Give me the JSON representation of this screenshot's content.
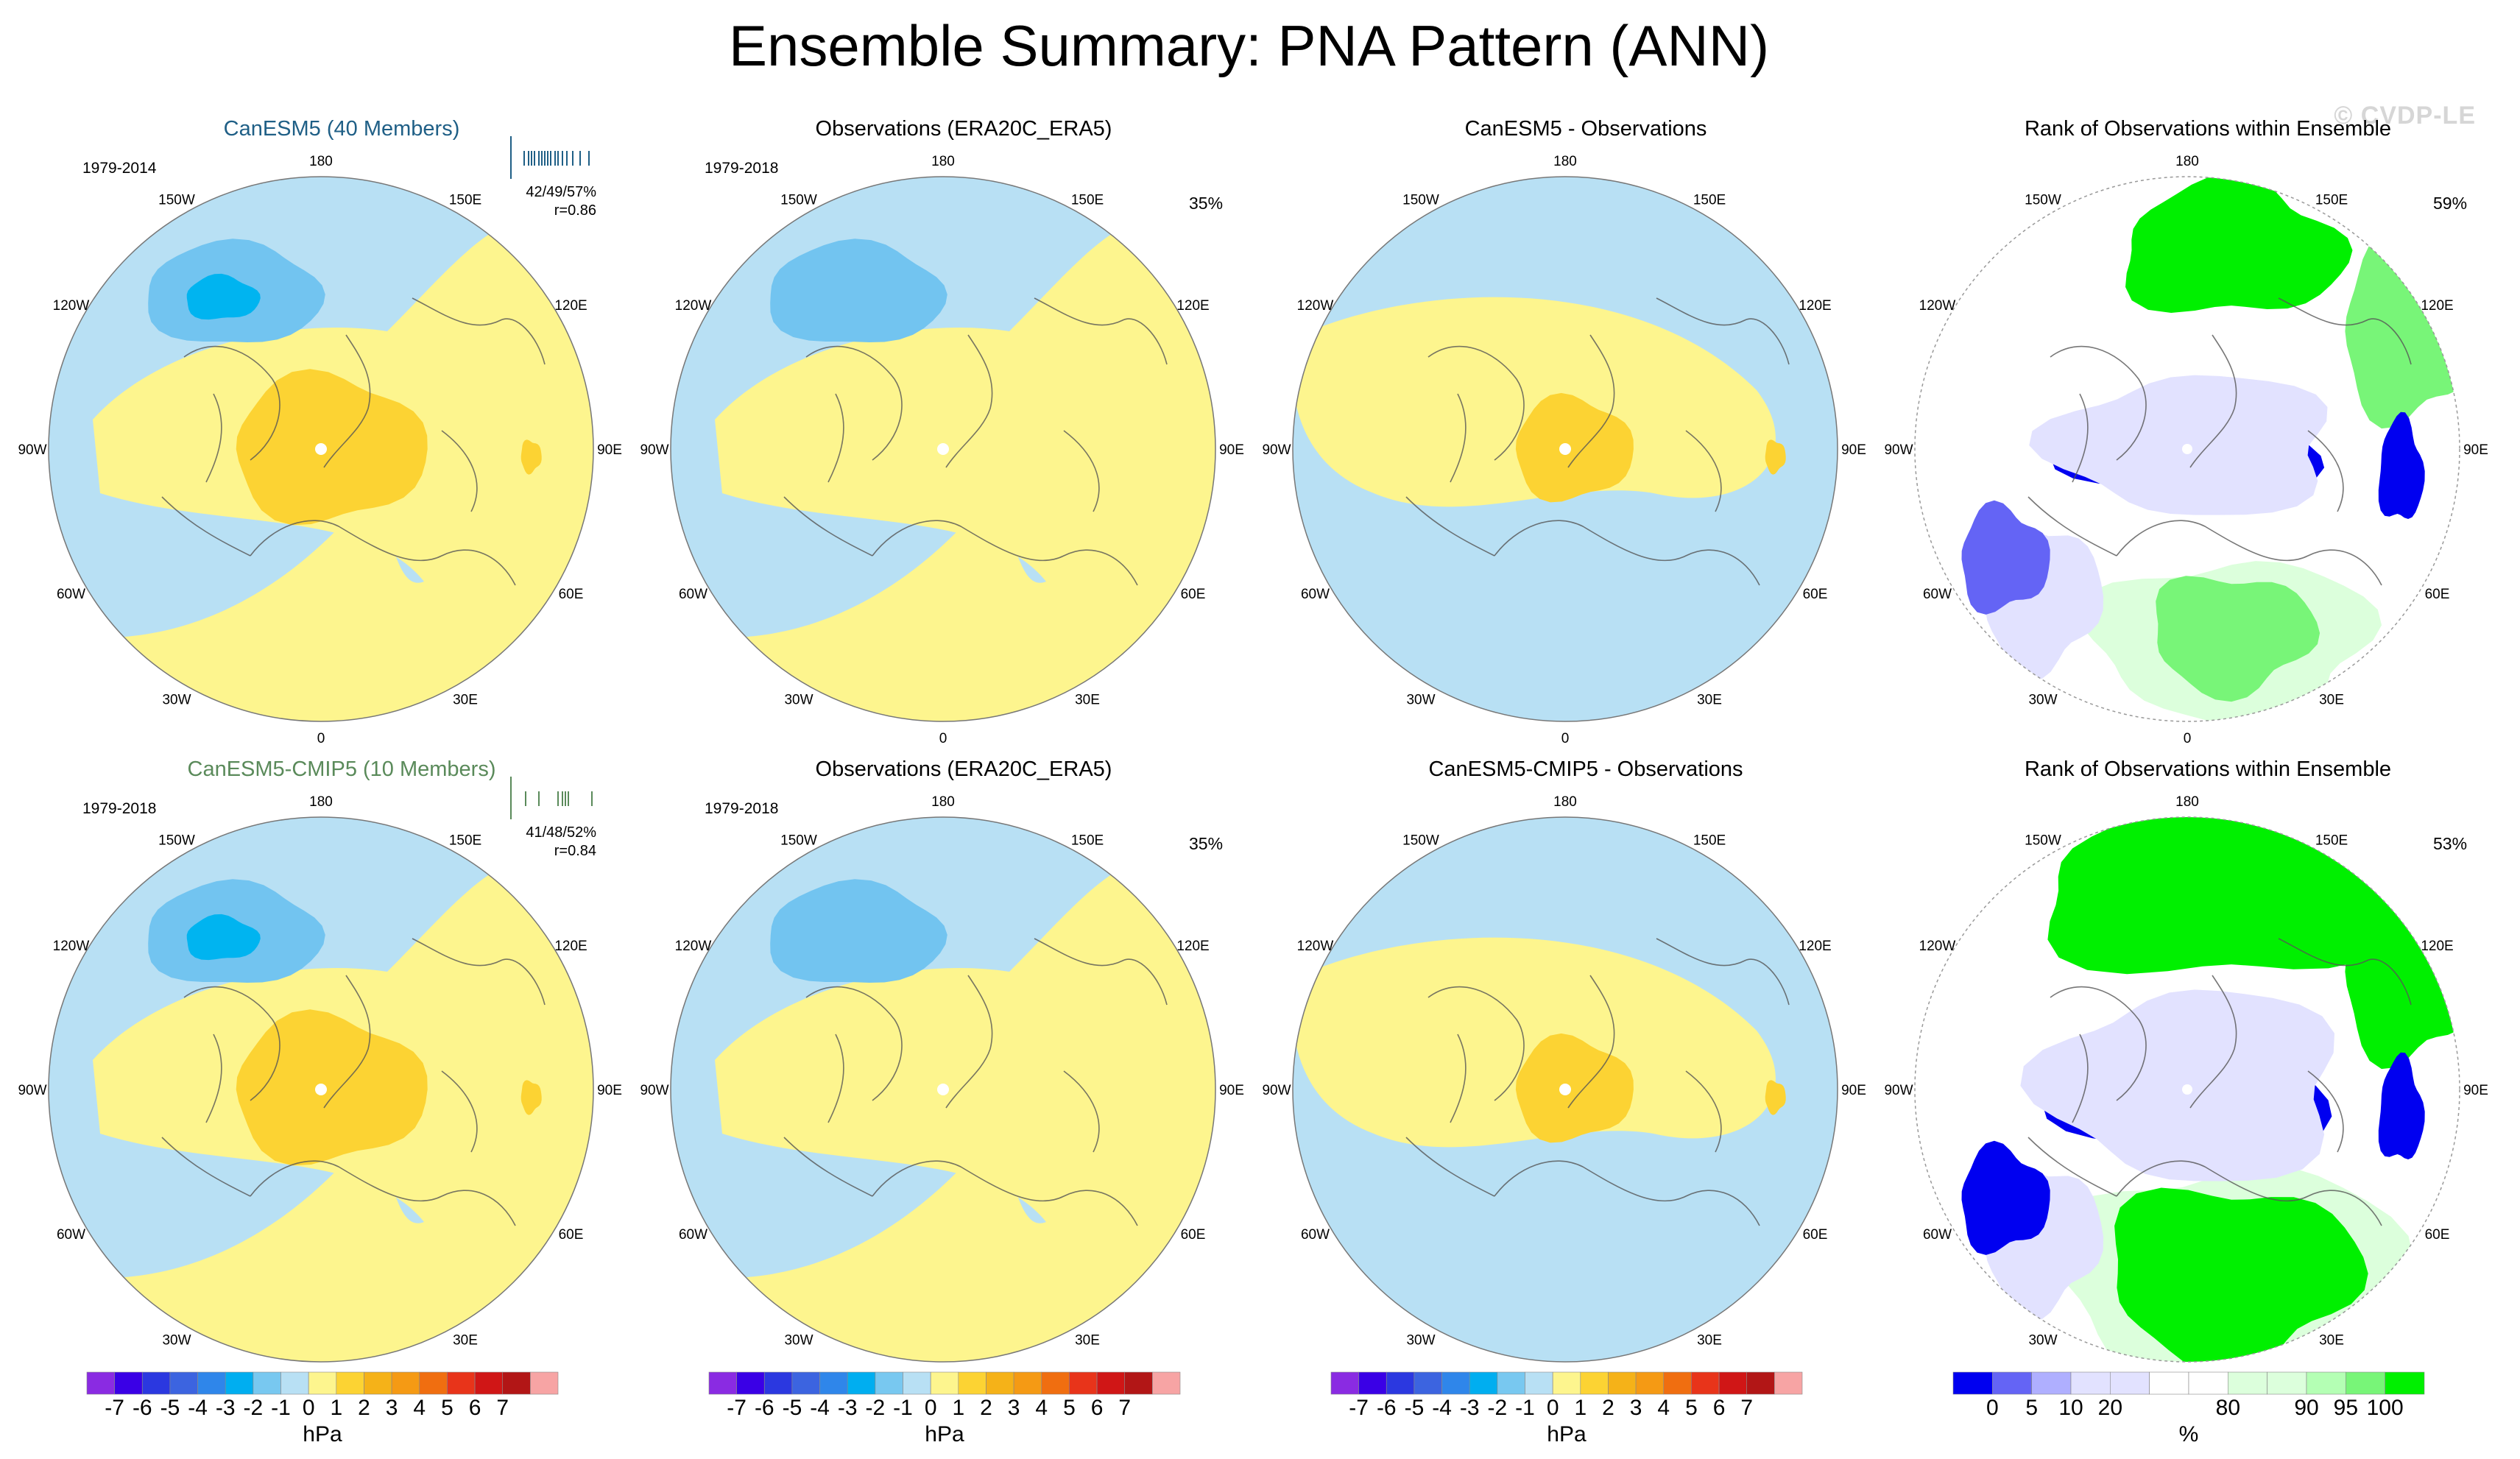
{
  "title": "Ensemble Summary: PNA Pattern (ANN)",
  "watermark": "© CVDP-LE",
  "lon_labels": [
    "180",
    "150E",
    "120E",
    "90E",
    "60E",
    "30E",
    "0",
    "30W",
    "60W",
    "90W",
    "120W",
    "150W"
  ],
  "colors": {
    "neg3": "#00b4f0",
    "neg2": "#4a9fe8",
    "neg1": "#72c4f0",
    "neg0": "#b8e0f4",
    "pos0": "#fdf58e",
    "pos1": "#fcd333",
    "pos2": "#f5b218",
    "rank_0": "#0000f0",
    "rank_5": "#6464f5",
    "rank_10": "#afafff",
    "rank_20": "#e2e2ff",
    "rank_80": "#dcffdc",
    "rank_90": "#b4ffb4",
    "rank_95": "#78f578",
    "rank_100": "#00f000"
  },
  "chart_data": [
    {
      "type": "heatmap",
      "projection": "north-polar-stereographic",
      "row": 1,
      "col": 1,
      "title": "CanESM5 (40 Members)",
      "period": "1979-2014",
      "stats": [
        "42/49/57%",
        "r=0.86"
      ],
      "field_kind": "anomaly",
      "units": "hPa",
      "centers": {
        "aleutian_low": -3.5,
        "arctic_high": 1.5,
        "east_asia_high": 1
      }
    },
    {
      "type": "heatmap",
      "projection": "north-polar-stereographic",
      "row": 1,
      "col": 2,
      "title": "Observations (ERA20C_ERA5)",
      "period": "1979-2018",
      "percent": "35%",
      "field_kind": "anomaly",
      "units": "hPa",
      "centers": {
        "aleutian_low": -2.5,
        "arctic_high": 0.5
      }
    },
    {
      "type": "heatmap",
      "projection": "north-polar-stereographic",
      "row": 1,
      "col": 3,
      "title": "CanESM5 - Observations",
      "field_kind": "anomaly",
      "units": "hPa",
      "centers": {
        "arctic_high": 1.5,
        "east_asia_high": 1
      }
    },
    {
      "type": "heatmap",
      "projection": "north-polar-stereographic",
      "row": 1,
      "col": 4,
      "title": "Rank of Observations within Ensemble",
      "percent": "59%",
      "field_kind": "rank",
      "units": "%"
    },
    {
      "type": "heatmap",
      "projection": "north-polar-stereographic",
      "row": 2,
      "col": 1,
      "title": "CanESM5-CMIP5 (10 Members)",
      "period": "1979-2018",
      "stats": [
        "41/48/52%",
        "r=0.84"
      ],
      "field_kind": "anomaly",
      "units": "hPa",
      "centers": {
        "aleutian_low": -3.5,
        "arctic_high": 1.5,
        "east_asia_high": 1
      }
    },
    {
      "type": "heatmap",
      "projection": "north-polar-stereographic",
      "row": 2,
      "col": 2,
      "title": "Observations (ERA20C_ERA5)",
      "period": "1979-2018",
      "percent": "35%",
      "field_kind": "anomaly",
      "units": "hPa",
      "centers": {
        "aleutian_low": -2.5,
        "arctic_high": 0.5
      }
    },
    {
      "type": "heatmap",
      "projection": "north-polar-stereographic",
      "row": 2,
      "col": 3,
      "title": "CanESM5-CMIP5 - Observations",
      "field_kind": "anomaly",
      "units": "hPa",
      "centers": {
        "arctic_high": 1.5,
        "east_asia_high": 1
      }
    },
    {
      "type": "heatmap",
      "projection": "north-polar-stereographic",
      "row": 2,
      "col": 4,
      "title": "Rank of Observations within Ensemble",
      "percent": "53%",
      "field_kind": "rank",
      "units": "%"
    }
  ],
  "colorbars": {
    "anomaly": {
      "unit": "hPa",
      "levels": [
        "-7",
        "-6",
        "-5",
        "-4",
        "-3",
        "-2",
        "-1",
        "0",
        "1",
        "2",
        "3",
        "4",
        "5",
        "6",
        "7"
      ],
      "colors": [
        "#8a2be2",
        "#3a00e6",
        "#2b38e0",
        "#3c64e0",
        "#2f86ea",
        "#00aef0",
        "#78c8f0",
        "#b8e0f4",
        "#fdf58e",
        "#fcd333",
        "#f5b218",
        "#f59a14",
        "#f06e10",
        "#e8341a",
        "#d01616",
        "#b21616",
        "#f7a4a4"
      ]
    },
    "rank": {
      "unit": "%",
      "levels": [
        "0",
        "5",
        "10",
        "20",
        "80",
        "90",
        "95",
        "100"
      ],
      "colors": [
        "#0000f0",
        "#6464f5",
        "#afafff",
        "#e2e2ff",
        "#e2e2ff",
        "#ffffff",
        "#ffffff",
        "#dcffdc",
        "#dcffdc",
        "#b4ffb4",
        "#78f578",
        "#00f000"
      ]
    }
  }
}
